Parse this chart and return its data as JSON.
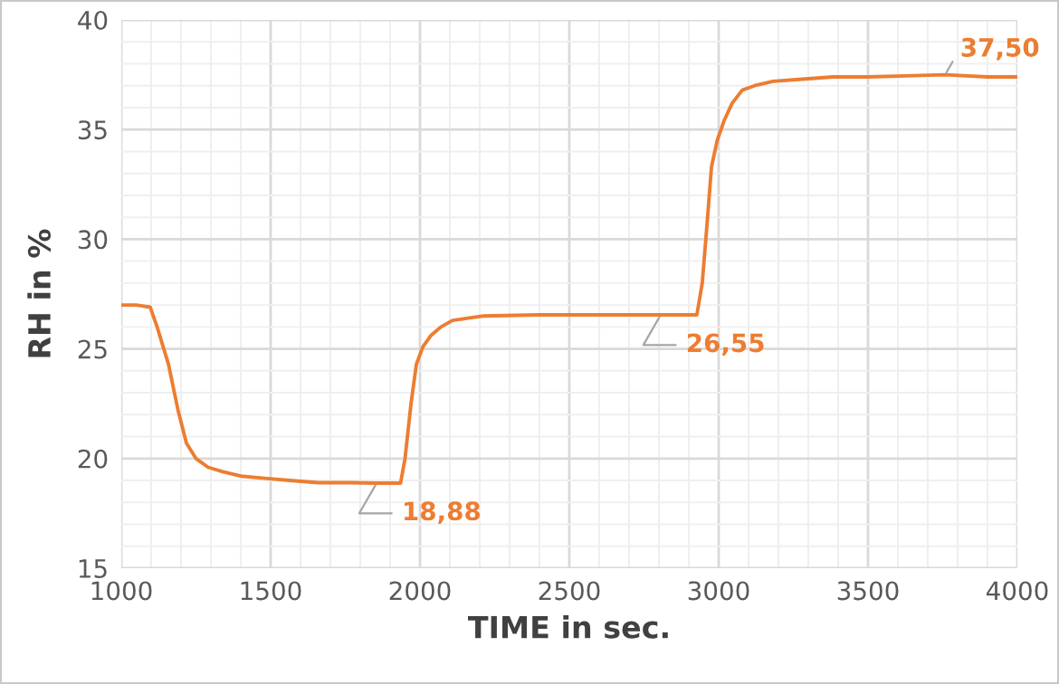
{
  "chart_data": {
    "type": "line",
    "xlabel": "TIME in sec.",
    "ylabel": "RH in %",
    "series": [
      {
        "color": "#ed7d31",
        "x": [
          1000,
          1050,
          1097,
          1120,
          1158,
          1190,
          1218,
          1250,
          1291,
          1340,
          1400,
          1480,
          1564,
          1660,
          1764,
          1855,
          1935,
          1950,
          1970,
          1988,
          2010,
          2036,
          2070,
          2109,
          2160,
          2212,
          2400,
          2600,
          2806,
          2927,
          2945,
          2960,
          2976,
          2995,
          3018,
          3045,
          3079,
          3120,
          3182,
          3280,
          3382,
          3500,
          3758,
          3900,
          4000
        ],
        "values": [
          27.0,
          27.0,
          26.9,
          26.0,
          24.3,
          22.2,
          20.7,
          20.0,
          19.6,
          19.4,
          19.2,
          19.1,
          19.0,
          18.9,
          18.9,
          18.88,
          18.88,
          20.0,
          22.5,
          24.3,
          25.1,
          25.6,
          26.0,
          26.3,
          26.4,
          26.5,
          26.55,
          26.55,
          26.55,
          26.55,
          28.0,
          30.5,
          33.3,
          34.5,
          35.4,
          36.2,
          36.8,
          37.0,
          37.2,
          37.3,
          37.4,
          37.4,
          37.5,
          37.4,
          37.4
        ]
      }
    ],
    "xlim": [
      1000,
      4000
    ],
    "xticks": [
      1000,
      1500,
      2000,
      2500,
      3000,
      3500,
      4000
    ],
    "ylim": [
      15,
      40
    ],
    "yticks": [
      15,
      20,
      25,
      30,
      35,
      40
    ],
    "grid": true,
    "marker": "none",
    "line_style": "solid",
    "annotations": [
      {
        "text": "18,88",
        "x": 1855,
        "y": 18.88
      },
      {
        "text": "26,55",
        "x": 2806,
        "y": 26.55
      },
      {
        "text": "37,50",
        "x": 3758,
        "y": 37.5
      }
    ]
  }
}
